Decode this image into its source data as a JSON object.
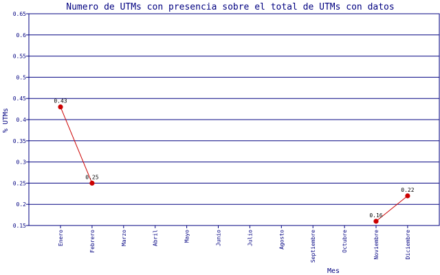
{
  "chart_data": {
    "type": "line",
    "title": "Numero de UTMs con presencia sobre el total de UTMs con datos",
    "xlabel": "Mes",
    "ylabel": "% UTMs",
    "categories": [
      "Enero",
      "Febrero",
      "Marzo",
      "Abril",
      "Mayo",
      "Junio",
      "Julio",
      "Agosto",
      "Septiembre",
      "Octubre",
      "Noviembre",
      "Diciembre"
    ],
    "yticks": [
      "0.15",
      "0.2",
      "0.25",
      "0.3",
      "0.35",
      "0.4",
      "0.45",
      "0.5",
      "0.55",
      "0.6",
      "0.65"
    ],
    "ylim": [
      0.15,
      0.65
    ],
    "grid": true,
    "series": [
      {
        "segments": [
          {
            "points": [
              {
                "month": "Enero",
                "value": 0.43,
                "label": "0.43"
              },
              {
                "month": "Febrero",
                "value": 0.25,
                "label": "0.25"
              }
            ]
          },
          {
            "points": [
              {
                "month": "Noviembre",
                "value": 0.16,
                "label": "0.16"
              },
              {
                "month": "Diciembre",
                "value": 0.22,
                "label": "0.22"
              }
            ]
          }
        ]
      }
    ],
    "colors": {
      "axis": "#000080",
      "grid": "#000080",
      "line": "#cc0000",
      "marker": "#cc0000",
      "text": "#000080",
      "labels": "#000000"
    }
  }
}
